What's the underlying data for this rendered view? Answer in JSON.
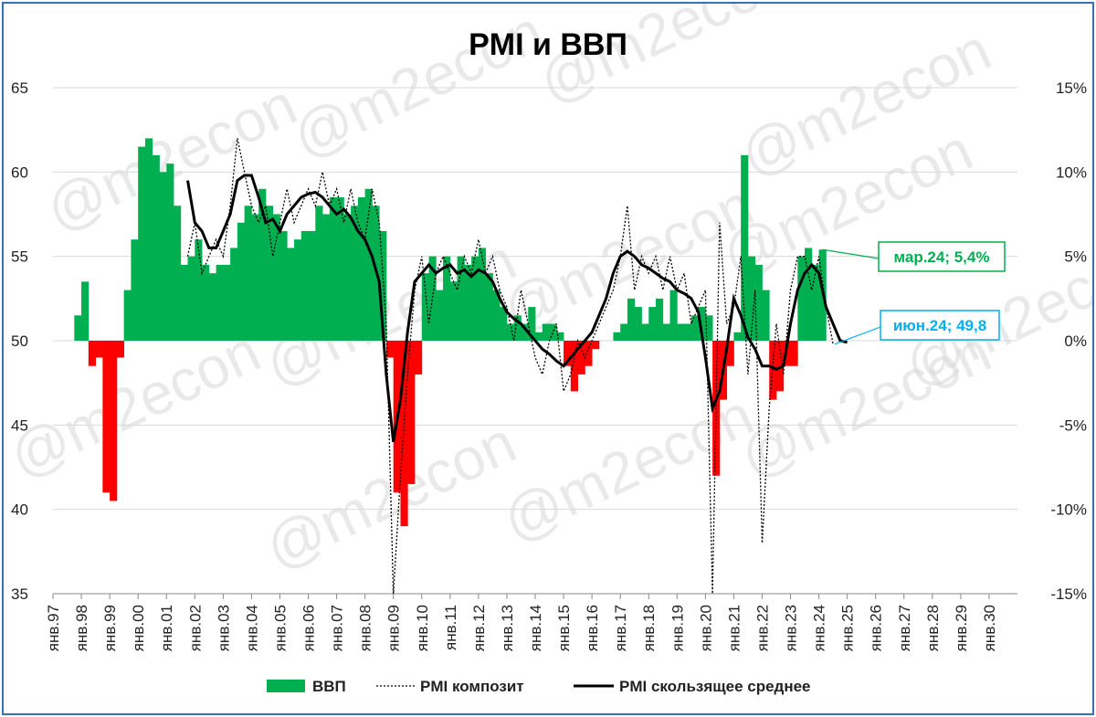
{
  "chart_data": {
    "type": "bar+line",
    "title": "PMI и ВВП",
    "watermark": "@m2econ",
    "left_axis": {
      "min": 35,
      "max": 65,
      "ticks": [
        35,
        40,
        45,
        50,
        55,
        60,
        65
      ]
    },
    "right_axis": {
      "min": -15,
      "max": 15,
      "ticks": [
        "-15%",
        "-10%",
        "-5%",
        "0%",
        "5%",
        "10%",
        "15%"
      ]
    },
    "x_ticks": [
      "янв.97",
      "янв.98",
      "янв.99",
      "янв.00",
      "янв.01",
      "янв.02",
      "янв.03",
      "янв.04",
      "янв.05",
      "янв.06",
      "янв.07",
      "янв.08",
      "янв.09",
      "янв.10",
      "янв.11",
      "янв.12",
      "янв.13",
      "янв.14",
      "янв.15",
      "янв.16",
      "янв.17",
      "янв.18",
      "янв.19",
      "янв.20",
      "янв.21",
      "янв.22",
      "янв.23",
      "янв.24",
      "янв.25",
      "янв.26",
      "янв.27",
      "янв.28",
      "янв.29",
      "янв.30"
    ],
    "grid": true,
    "legend_position": "bottom",
    "legend": [
      {
        "label": "ВВП",
        "kind": "bar",
        "color": "#00b050"
      },
      {
        "label": "PMI композит",
        "kind": "dotted",
        "color": "#000000"
      },
      {
        "label": "PMI скользящее среднее",
        "kind": "solid",
        "color": "#000000"
      }
    ],
    "colors": {
      "positive": "#00b050",
      "negative": "#ff0000",
      "callout_gdp": "#00b050",
      "callout_pmi": "#00b0f0"
    },
    "gdp_series": {
      "name": "ВВП",
      "unit": "%",
      "quarters": [
        [
          1997.75,
          1.5
        ],
        [
          1998.0,
          3.5
        ],
        [
          1998.25,
          -1.5
        ],
        [
          1998.5,
          -1.0
        ],
        [
          1998.75,
          -9.0
        ],
        [
          1999.0,
          -9.5
        ],
        [
          1999.25,
          -1.0
        ],
        [
          1999.5,
          3.0
        ],
        [
          1999.75,
          6.0
        ],
        [
          2000.0,
          11.5
        ],
        [
          2000.25,
          12.0
        ],
        [
          2000.5,
          11.0
        ],
        [
          2000.75,
          10.0
        ],
        [
          2001.0,
          10.5
        ],
        [
          2001.25,
          8.0
        ],
        [
          2001.5,
          4.5
        ],
        [
          2001.75,
          5.0
        ],
        [
          2002.0,
          6.0
        ],
        [
          2002.25,
          4.5
        ],
        [
          2002.5,
          4.0
        ],
        [
          2002.75,
          4.5
        ],
        [
          2003.0,
          4.5
        ],
        [
          2003.25,
          5.5
        ],
        [
          2003.5,
          7.0
        ],
        [
          2003.75,
          8.0
        ],
        [
          2004.0,
          7.5
        ],
        [
          2004.25,
          9.0
        ],
        [
          2004.5,
          8.0
        ],
        [
          2004.75,
          7.5
        ],
        [
          2005.0,
          6.5
        ],
        [
          2005.25,
          5.5
        ],
        [
          2005.5,
          6.0
        ],
        [
          2005.75,
          6.5
        ],
        [
          2006.0,
          6.5
        ],
        [
          2006.25,
          8.0
        ],
        [
          2006.5,
          7.5
        ],
        [
          2006.75,
          8.5
        ],
        [
          2007.0,
          8.5
        ],
        [
          2007.25,
          7.5
        ],
        [
          2007.5,
          8.0
        ],
        [
          2007.75,
          8.5
        ],
        [
          2008.0,
          9.0
        ],
        [
          2008.25,
          8.0
        ],
        [
          2008.5,
          6.5
        ],
        [
          2008.75,
          -1.0
        ],
        [
          2009.0,
          -9.0
        ],
        [
          2009.25,
          -11.0
        ],
        [
          2009.5,
          -8.5
        ],
        [
          2009.75,
          -2.0
        ],
        [
          2010.0,
          4.0
        ],
        [
          2010.25,
          5.0
        ],
        [
          2010.5,
          3.0
        ],
        [
          2010.75,
          5.0
        ],
        [
          2011.0,
          3.5
        ],
        [
          2011.25,
          5.0
        ],
        [
          2011.5,
          4.5
        ],
        [
          2011.75,
          5.0
        ],
        [
          2012.0,
          5.5
        ],
        [
          2012.25,
          4.0
        ],
        [
          2012.5,
          3.0
        ],
        [
          2012.75,
          2.0
        ],
        [
          2013.0,
          1.0
        ],
        [
          2013.25,
          1.5
        ],
        [
          2013.5,
          1.0
        ],
        [
          2013.75,
          2.0
        ],
        [
          2014.0,
          0.5
        ],
        [
          2014.25,
          1.0
        ],
        [
          2014.5,
          1.0
        ],
        [
          2014.75,
          0.5
        ],
        [
          2015.0,
          -1.5
        ],
        [
          2015.25,
          -3.0
        ],
        [
          2015.5,
          -2.0
        ],
        [
          2015.75,
          -1.5
        ],
        [
          2016.0,
          -0.5
        ],
        [
          2016.25,
          0.0
        ],
        [
          2016.5,
          0.0
        ],
        [
          2016.75,
          0.5
        ],
        [
          2017.0,
          1.0
        ],
        [
          2017.25,
          2.5
        ],
        [
          2017.5,
          2.0
        ],
        [
          2017.75,
          1.0
        ],
        [
          2018.0,
          2.0
        ],
        [
          2018.25,
          2.5
        ],
        [
          2018.5,
          1.0
        ],
        [
          2018.75,
          3.0
        ],
        [
          2019.0,
          1.0
        ],
        [
          2019.25,
          1.0
        ],
        [
          2019.5,
          1.5
        ],
        [
          2019.75,
          2.0
        ],
        [
          2020.0,
          1.5
        ],
        [
          2020.25,
          -8.0
        ],
        [
          2020.5,
          -3.5
        ],
        [
          2020.75,
          -1.5
        ],
        [
          2021.0,
          0.5
        ],
        [
          2021.25,
          11.0
        ],
        [
          2021.5,
          5.0
        ],
        [
          2021.75,
          4.5
        ],
        [
          2022.0,
          3.0
        ],
        [
          2022.25,
          -3.5
        ],
        [
          2022.5,
          -3.0
        ],
        [
          2022.75,
          -1.5
        ],
        [
          2023.0,
          -1.5
        ],
        [
          2023.25,
          5.0
        ],
        [
          2023.5,
          5.5
        ],
        [
          2023.75,
          4.5
        ],
        [
          2024.0,
          5.4
        ]
      ]
    },
    "pmi_composite": {
      "name": "PMI композит",
      "points": [
        [
          2001.75,
          55
        ],
        [
          2002.0,
          57
        ],
        [
          2002.25,
          54
        ],
        [
          2002.5,
          55
        ],
        [
          2002.75,
          56
        ],
        [
          2003.0,
          55
        ],
        [
          2003.25,
          58
        ],
        [
          2003.5,
          62
        ],
        [
          2003.75,
          60
        ],
        [
          2004.0,
          58
        ],
        [
          2004.25,
          57
        ],
        [
          2004.5,
          58
        ],
        [
          2004.75,
          55
        ],
        [
          2005.0,
          57
        ],
        [
          2005.25,
          59
        ],
        [
          2005.5,
          57
        ],
        [
          2005.75,
          58
        ],
        [
          2006.0,
          59
        ],
        [
          2006.25,
          58
        ],
        [
          2006.5,
          60
        ],
        [
          2006.75,
          58
        ],
        [
          2007.0,
          59
        ],
        [
          2007.25,
          57
        ],
        [
          2007.5,
          59
        ],
        [
          2007.75,
          57
        ],
        [
          2008.0,
          56
        ],
        [
          2008.25,
          59
        ],
        [
          2008.5,
          57
        ],
        [
          2008.75,
          51
        ],
        [
          2009.0,
          35
        ],
        [
          2009.25,
          42
        ],
        [
          2009.5,
          48
        ],
        [
          2009.75,
          53
        ],
        [
          2010.0,
          55
        ],
        [
          2010.25,
          51
        ],
        [
          2010.5,
          54
        ],
        [
          2010.75,
          55
        ],
        [
          2011.0,
          54
        ],
        [
          2011.25,
          53
        ],
        [
          2011.5,
          55
        ],
        [
          2011.75,
          54
        ],
        [
          2012.0,
          56
        ],
        [
          2012.25,
          54
        ],
        [
          2012.5,
          55
        ],
        [
          2012.75,
          53
        ],
        [
          2013.0,
          52
        ],
        [
          2013.25,
          50
        ],
        [
          2013.5,
          53
        ],
        [
          2013.75,
          51
        ],
        [
          2014.0,
          49
        ],
        [
          2014.25,
          48
        ],
        [
          2014.5,
          50
        ],
        [
          2014.75,
          51
        ],
        [
          2015.0,
          47
        ],
        [
          2015.25,
          48
        ],
        [
          2015.5,
          50
        ],
        [
          2015.75,
          49
        ],
        [
          2016.0,
          50
        ],
        [
          2016.25,
          51
        ],
        [
          2016.5,
          52
        ],
        [
          2016.75,
          53
        ],
        [
          2017.0,
          55
        ],
        [
          2017.25,
          58
        ],
        [
          2017.5,
          53
        ],
        [
          2017.75,
          55
        ],
        [
          2018.0,
          54
        ],
        [
          2018.25,
          55
        ],
        [
          2018.5,
          53
        ],
        [
          2018.75,
          55
        ],
        [
          2019.0,
          53
        ],
        [
          2019.25,
          54
        ],
        [
          2019.5,
          51
        ],
        [
          2019.75,
          52
        ],
        [
          2020.0,
          53
        ],
        [
          2020.25,
          35
        ],
        [
          2020.5,
          57
        ],
        [
          2020.75,
          51
        ],
        [
          2021.0,
          52
        ],
        [
          2021.25,
          55
        ],
        [
          2021.5,
          48
        ],
        [
          2021.75,
          53
        ],
        [
          2022.0,
          38
        ],
        [
          2022.25,
          46
        ],
        [
          2022.5,
          51
        ],
        [
          2022.75,
          48
        ],
        [
          2023.0,
          53
        ],
        [
          2023.25,
          55
        ],
        [
          2023.5,
          55
        ],
        [
          2023.75,
          53
        ],
        [
          2024.0,
          55
        ],
        [
          2024.25,
          52
        ],
        [
          2024.5,
          49.8
        ]
      ]
    },
    "pmi_moving_average": {
      "name": "PMI скользящее среднее",
      "points": [
        [
          2001.75,
          59.5
        ],
        [
          2002.0,
          57
        ],
        [
          2002.25,
          56.5
        ],
        [
          2002.5,
          55.5
        ],
        [
          2002.75,
          55.5
        ],
        [
          2003.0,
          56.5
        ],
        [
          2003.25,
          57.5
        ],
        [
          2003.5,
          59.5
        ],
        [
          2003.75,
          59.8
        ],
        [
          2004.0,
          59.8
        ],
        [
          2004.25,
          58.5
        ],
        [
          2004.5,
          57.0
        ],
        [
          2004.75,
          57.2
        ],
        [
          2005.0,
          56.5
        ],
        [
          2005.25,
          57.5
        ],
        [
          2005.5,
          58.0
        ],
        [
          2005.75,
          58.5
        ],
        [
          2006.0,
          58.7
        ],
        [
          2006.25,
          58.8
        ],
        [
          2006.5,
          58.5
        ],
        [
          2006.75,
          58.0
        ],
        [
          2007.0,
          57.5
        ],
        [
          2007.25,
          57.8
        ],
        [
          2007.5,
          57.3
        ],
        [
          2007.75,
          56.5
        ],
        [
          2008.0,
          56.0
        ],
        [
          2008.25,
          55.0
        ],
        [
          2008.5,
          53.5
        ],
        [
          2008.75,
          48.0
        ],
        [
          2009.0,
          44.0
        ],
        [
          2009.25,
          46.5
        ],
        [
          2009.5,
          50.5
        ],
        [
          2009.75,
          53.5
        ],
        [
          2010.0,
          54.0
        ],
        [
          2010.25,
          54.5
        ],
        [
          2010.5,
          54.0
        ],
        [
          2010.75,
          54.3
        ],
        [
          2011.0,
          54.5
        ],
        [
          2011.25,
          54.0
        ],
        [
          2011.5,
          54.2
        ],
        [
          2011.75,
          53.8
        ],
        [
          2012.0,
          54.2
        ],
        [
          2012.25,
          54.0
        ],
        [
          2012.5,
          53.5
        ],
        [
          2012.75,
          52.5
        ],
        [
          2013.0,
          51.7
        ],
        [
          2013.25,
          51.3
        ],
        [
          2013.5,
          51.0
        ],
        [
          2013.75,
          50.5
        ],
        [
          2014.0,
          50.0
        ],
        [
          2014.25,
          49.5
        ],
        [
          2014.5,
          49.2
        ],
        [
          2014.75,
          48.8
        ],
        [
          2015.0,
          48.5
        ],
        [
          2015.25,
          49.0
        ],
        [
          2015.5,
          49.5
        ],
        [
          2015.75,
          50.0
        ],
        [
          2016.0,
          50.5
        ],
        [
          2016.25,
          51.5
        ],
        [
          2016.5,
          52.5
        ],
        [
          2016.75,
          54.0
        ],
        [
          2017.0,
          55.0
        ],
        [
          2017.25,
          55.3
        ],
        [
          2017.5,
          55.0
        ],
        [
          2017.75,
          54.5
        ],
        [
          2018.0,
          54.3
        ],
        [
          2018.25,
          54.0
        ],
        [
          2018.5,
          53.7
        ],
        [
          2018.75,
          53.5
        ],
        [
          2019.0,
          53.0
        ],
        [
          2019.25,
          52.8
        ],
        [
          2019.5,
          52.5
        ],
        [
          2019.75,
          51.7
        ],
        [
          2020.0,
          49.0
        ],
        [
          2020.25,
          46.0
        ],
        [
          2020.5,
          47.0
        ],
        [
          2020.75,
          49.5
        ],
        [
          2021.0,
          52.5
        ],
        [
          2021.25,
          51.5
        ],
        [
          2021.5,
          50.2
        ],
        [
          2021.75,
          49.5
        ],
        [
          2022.0,
          48.5
        ],
        [
          2022.25,
          48.5
        ],
        [
          2022.5,
          48.3
        ],
        [
          2022.75,
          48.5
        ],
        [
          2023.0,
          51.0
        ],
        [
          2023.25,
          53.0
        ],
        [
          2023.5,
          54.0
        ],
        [
          2023.75,
          54.5
        ],
        [
          2024.0,
          54.0
        ],
        [
          2024.25,
          52.0
        ],
        [
          2024.5,
          51.0
        ],
        [
          2024.75,
          50.0
        ],
        [
          2025.0,
          49.9
        ]
      ]
    },
    "annotations": [
      {
        "text": "мар.24; 5,4%",
        "series": "ВВП",
        "color": "#00b050"
      },
      {
        "text": "июн.24; 49,8",
        "series": "PMI композит",
        "color": "#00b0f0"
      }
    ]
  }
}
